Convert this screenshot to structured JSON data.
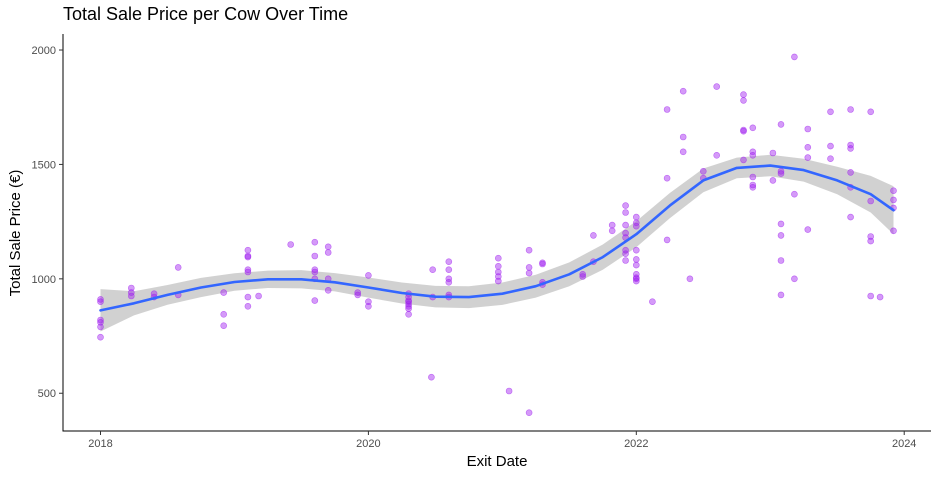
{
  "chart_data": {
    "type": "scatter",
    "title": "Total Sale Price per Cow Over Time",
    "xlabel": "Exit Date",
    "ylabel": "Total Sale Price (€)",
    "x_ticks": [
      "2018",
      "2020",
      "2022",
      "2024"
    ],
    "x_tick_values": [
      2018,
      2020,
      2022,
      2024
    ],
    "y_ticks": [
      "500",
      "1000",
      "1500",
      "2000"
    ],
    "y_tick_values": [
      500,
      1000,
      1500,
      2000
    ],
    "xlim": [
      2017.72,
      2024.2
    ],
    "ylim": [
      335,
      2070
    ],
    "grid": false,
    "colors": {
      "points": "#a020f0",
      "smooth_line": "#3366ff",
      "ribbon": "#bebebe"
    },
    "points": [
      [
        2018.0,
        900
      ],
      [
        2018.0,
        910
      ],
      [
        2018.0,
        820
      ],
      [
        2018.0,
        810
      ],
      [
        2018.0,
        790
      ],
      [
        2018.0,
        745
      ],
      [
        2018.23,
        960
      ],
      [
        2018.23,
        940
      ],
      [
        2018.23,
        925
      ],
      [
        2018.4,
        935
      ],
      [
        2018.4,
        920
      ],
      [
        2018.58,
        1050
      ],
      [
        2018.58,
        930
      ],
      [
        2018.92,
        940
      ],
      [
        2018.92,
        845
      ],
      [
        2018.92,
        795
      ],
      [
        2019.1,
        1125
      ],
      [
        2019.1,
        1100
      ],
      [
        2019.1,
        1095
      ],
      [
        2019.1,
        1040
      ],
      [
        2019.1,
        1030
      ],
      [
        2019.1,
        920
      ],
      [
        2019.1,
        880
      ],
      [
        2019.18,
        925
      ],
      [
        2019.42,
        1150
      ],
      [
        2019.6,
        1160
      ],
      [
        2019.6,
        1100
      ],
      [
        2019.6,
        1040
      ],
      [
        2019.6,
        1030
      ],
      [
        2019.6,
        1000
      ],
      [
        2019.6,
        905
      ],
      [
        2019.7,
        1140
      ],
      [
        2019.7,
        1115
      ],
      [
        2019.7,
        1000
      ],
      [
        2019.7,
        950
      ],
      [
        2019.92,
        940
      ],
      [
        2019.92,
        930
      ],
      [
        2020.0,
        1015
      ],
      [
        2020.0,
        900
      ],
      [
        2020.0,
        880
      ],
      [
        2020.3,
        935
      ],
      [
        2020.3,
        920
      ],
      [
        2020.3,
        905
      ],
      [
        2020.3,
        900
      ],
      [
        2020.3,
        890
      ],
      [
        2020.3,
        880
      ],
      [
        2020.3,
        870
      ],
      [
        2020.3,
        845
      ],
      [
        2020.47,
        570
      ],
      [
        2020.48,
        1040
      ],
      [
        2020.48,
        920
      ],
      [
        2020.6,
        1075
      ],
      [
        2020.6,
        1040
      ],
      [
        2020.6,
        1000
      ],
      [
        2020.6,
        985
      ],
      [
        2020.6,
        930
      ],
      [
        2020.6,
        920
      ],
      [
        2020.97,
        1090
      ],
      [
        2020.97,
        1055
      ],
      [
        2020.97,
        1030
      ],
      [
        2020.97,
        1010
      ],
      [
        2020.97,
        990
      ],
      [
        2021.05,
        510
      ],
      [
        2021.2,
        1125
      ],
      [
        2021.2,
        1050
      ],
      [
        2021.2,
        1025
      ],
      [
        2021.2,
        415
      ],
      [
        2021.3,
        1070
      ],
      [
        2021.3,
        1065
      ],
      [
        2021.3,
        985
      ],
      [
        2021.3,
        975
      ],
      [
        2021.6,
        1020
      ],
      [
        2021.6,
        1010
      ],
      [
        2021.68,
        1190
      ],
      [
        2021.68,
        1075
      ],
      [
        2021.82,
        1235
      ],
      [
        2021.82,
        1210
      ],
      [
        2021.92,
        1320
      ],
      [
        2021.92,
        1290
      ],
      [
        2021.92,
        1235
      ],
      [
        2021.92,
        1200
      ],
      [
        2021.92,
        1180
      ],
      [
        2021.92,
        1125
      ],
      [
        2021.92,
        1110
      ],
      [
        2021.92,
        1080
      ],
      [
        2022.0,
        1270
      ],
      [
        2022.0,
        1245
      ],
      [
        2022.0,
        1230
      ],
      [
        2022.0,
        1125
      ],
      [
        2022.0,
        1085
      ],
      [
        2022.0,
        1060
      ],
      [
        2022.0,
        1020
      ],
      [
        2022.0,
        1005
      ],
      [
        2022.0,
        1000
      ],
      [
        2022.0,
        990
      ],
      [
        2022.12,
        900
      ],
      [
        2022.23,
        1740
      ],
      [
        2022.23,
        1440
      ],
      [
        2022.23,
        1170
      ],
      [
        2022.35,
        1820
      ],
      [
        2022.35,
        1620
      ],
      [
        2022.35,
        1555
      ],
      [
        2022.4,
        1000
      ],
      [
        2022.6,
        1840
      ],
      [
        2022.6,
        1540
      ],
      [
        2022.5,
        1470
      ],
      [
        2022.5,
        1440
      ],
      [
        2022.8,
        1805
      ],
      [
        2022.8,
        1780
      ],
      [
        2022.8,
        1650
      ],
      [
        2022.8,
        1645
      ],
      [
        2022.8,
        1520
      ],
      [
        2022.87,
        1660
      ],
      [
        2022.87,
        1555
      ],
      [
        2022.87,
        1540
      ],
      [
        2022.87,
        1445
      ],
      [
        2022.87,
        1410
      ],
      [
        2022.87,
        1400
      ],
      [
        2023.02,
        1550
      ],
      [
        2023.02,
        1430
      ],
      [
        2023.08,
        1675
      ],
      [
        2023.08,
        1470
      ],
      [
        2023.08,
        1460
      ],
      [
        2023.08,
        1240
      ],
      [
        2023.08,
        1190
      ],
      [
        2023.08,
        1080
      ],
      [
        2023.08,
        930
      ],
      [
        2023.18,
        1970
      ],
      [
        2023.18,
        1370
      ],
      [
        2023.18,
        1000
      ],
      [
        2023.28,
        1655
      ],
      [
        2023.28,
        1575
      ],
      [
        2023.28,
        1530
      ],
      [
        2023.28,
        1215
      ],
      [
        2023.45,
        1730
      ],
      [
        2023.45,
        1580
      ],
      [
        2023.45,
        1525
      ],
      [
        2023.6,
        1740
      ],
      [
        2023.6,
        1585
      ],
      [
        2023.6,
        1570
      ],
      [
        2023.6,
        1465
      ],
      [
        2023.6,
        1400
      ],
      [
        2023.6,
        1270
      ],
      [
        2023.75,
        1730
      ],
      [
        2023.75,
        1340
      ],
      [
        2023.75,
        1185
      ],
      [
        2023.75,
        1165
      ],
      [
        2023.75,
        925
      ],
      [
        2023.82,
        920
      ],
      [
        2023.92,
        1385
      ],
      [
        2023.92,
        1345
      ],
      [
        2023.92,
        1310
      ],
      [
        2023.92,
        1210
      ]
    ],
    "smooth": {
      "x": [
        2018.0,
        2018.25,
        2018.5,
        2018.75,
        2019.0,
        2019.25,
        2019.5,
        2019.75,
        2020.0,
        2020.25,
        2020.5,
        2020.75,
        2021.0,
        2021.25,
        2021.5,
        2021.75,
        2022.0,
        2022.25,
        2022.5,
        2022.75,
        2023.0,
        2023.25,
        2023.5,
        2023.75,
        2023.92
      ],
      "y": [
        862,
        893,
        930,
        962,
        986,
        998,
        998,
        985,
        962,
        938,
        922,
        920,
        935,
        968,
        1020,
        1095,
        1195,
        1320,
        1430,
        1485,
        1495,
        1475,
        1430,
        1370,
        1300
      ],
      "ci_low": [
        770,
        840,
        887,
        920,
        948,
        960,
        958,
        945,
        918,
        892,
        875,
        872,
        886,
        918,
        968,
        1040,
        1138,
        1265,
        1378,
        1440,
        1448,
        1425,
        1370,
        1290,
        1195
      ],
      "ci_high": [
        955,
        946,
        973,
        1004,
        1024,
        1036,
        1038,
        1025,
        1006,
        984,
        969,
        968,
        984,
        1018,
        1072,
        1150,
        1252,
        1375,
        1482,
        1530,
        1542,
        1525,
        1490,
        1450,
        1405
      ]
    }
  }
}
